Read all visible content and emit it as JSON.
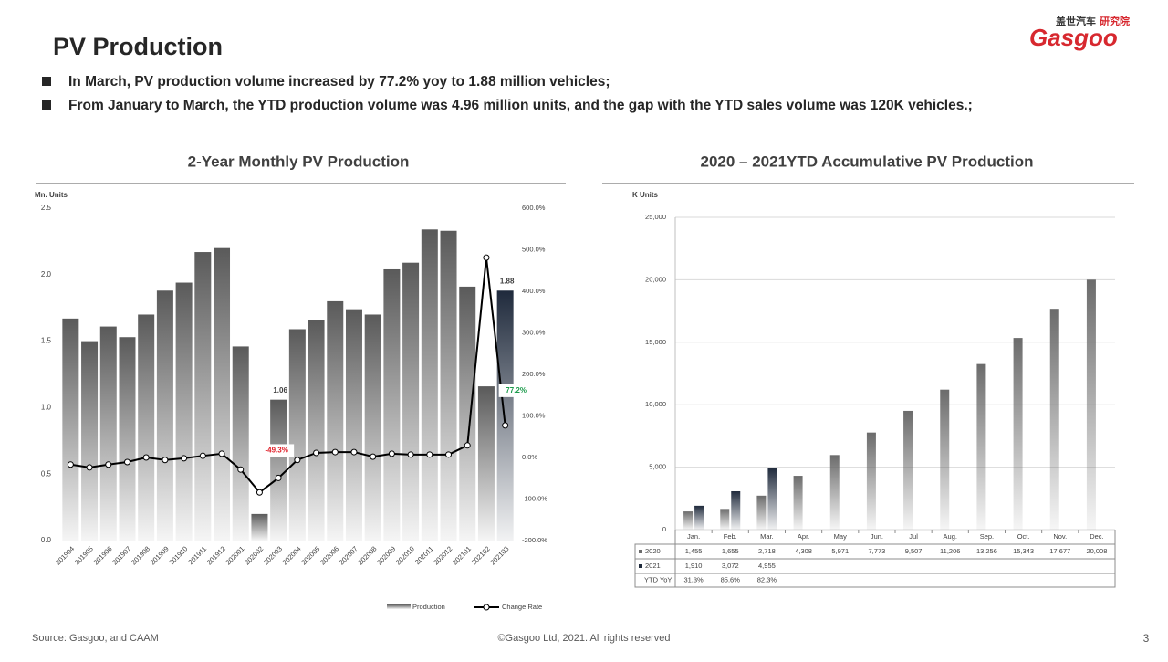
{
  "header": {
    "title": "PV Production",
    "bullets": [
      "In March, PV production volume increased by 77.2% yoy to 1.88 million vehicles;",
      "From January to March, the YTD production volume was 4.96 million units, and the gap with the YTD sales volume was 120K vehicles.;"
    ],
    "logo": {
      "brand_cn": "盖世汽车",
      "unit_cn": "研究院",
      "brand": "Gasgoo"
    }
  },
  "footer": {
    "source": "Source: Gasgoo, and CAAM",
    "copyright": "©Gasgoo Ltd, 2021. All rights reserved",
    "page": "3"
  },
  "chart_data": [
    {
      "type": "bar",
      "title": "2-Year Monthly  PV Production",
      "ylabel": "Mn. Units",
      "grid": false,
      "categories": [
        "201904",
        "201905",
        "201906",
        "201907",
        "201908",
        "201909",
        "201910",
        "201911",
        "201912",
        "202001",
        "202002",
        "202003",
        "202004",
        "202005",
        "202006",
        "202007",
        "202008",
        "202009",
        "202010",
        "202011",
        "202012",
        "202101",
        "202102",
        "202103"
      ],
      "ylim": [
        0,
        2.5
      ],
      "yticks": [
        {
          "value": 0,
          "label": "0.0"
        },
        {
          "value": 0.5,
          "label": "0.5"
        },
        {
          "value": 1,
          "label": "1.0"
        },
        {
          "value": 1.5,
          "label": "1.5"
        },
        {
          "value": 2,
          "label": "2.0"
        },
        {
          "value": 2.5,
          "label": "2.5"
        }
      ],
      "y2lim": [
        -200,
        600
      ],
      "y2ticks": [
        {
          "value": -200,
          "label": "-200.0%"
        },
        {
          "value": -100,
          "label": "-100.0%"
        },
        {
          "value": 0,
          "label": "0.0%"
        },
        {
          "value": 100,
          "label": "100.0%"
        },
        {
          "value": 200,
          "label": "200.0%"
        },
        {
          "value": 300,
          "label": "300.0%"
        },
        {
          "value": 400,
          "label": "400.0%"
        },
        {
          "value": 500,
          "label": "500.0%"
        },
        {
          "value": 600,
          "label": "600.0%"
        }
      ],
      "series": [
        {
          "name": "Production",
          "type": "bar",
          "color": "#5a5a5a",
          "colors": [
            "#5a5a5a",
            "#5a5a5a",
            "#5a5a5a",
            "#5a5a5a",
            "#5a5a5a",
            "#5a5a5a",
            "#5a5a5a",
            "#5a5a5a",
            "#5a5a5a",
            "#5a5a5a",
            "#5a5a5a",
            "#5a5a5a",
            "#5a5a5a",
            "#5a5a5a",
            "#5a5a5a",
            "#5a5a5a",
            "#5a5a5a",
            "#5a5a5a",
            "#5a5a5a",
            "#5a5a5a",
            "#5a5a5a",
            "#5a5a5a",
            "#5a5a5a",
            "#1f2a3c"
          ],
          "values": [
            1.67,
            1.5,
            1.61,
            1.53,
            1.7,
            1.88,
            1.94,
            2.17,
            2.2,
            1.46,
            0.2,
            1.06,
            1.59,
            1.66,
            1.8,
            1.74,
            1.7,
            2.04,
            2.09,
            2.34,
            2.33,
            1.91,
            1.16,
            1.88
          ],
          "value_labels": [
            null,
            null,
            null,
            null,
            null,
            null,
            null,
            null,
            null,
            null,
            null,
            "1.06",
            null,
            null,
            null,
            null,
            null,
            null,
            null,
            null,
            null,
            null,
            null,
            "1.88"
          ]
        },
        {
          "name": "Change Rate",
          "type": "line",
          "axis": "y2",
          "color": "#000000",
          "values": [
            -17,
            -24,
            -17,
            -11,
            0,
            -6,
            -2,
            4,
            9,
            -29,
            -84,
            -49.3,
            -6,
            11,
            13,
            13,
            2,
            9,
            7,
            7,
            7,
            29,
            481,
            77.2
          ],
          "value_labels": [
            null,
            null,
            null,
            null,
            null,
            null,
            null,
            null,
            null,
            null,
            null,
            "-49.3%",
            null,
            null,
            null,
            null,
            null,
            null,
            null,
            null,
            null,
            null,
            null,
            "77.2%"
          ]
        }
      ]
    },
    {
      "type": "bar",
      "title": "2020 – 2021YTD Accumulative  PV Production",
      "ylabel": "K Units",
      "grid": true,
      "categories": [
        "Jan.",
        "Feb.",
        "Mar.",
        "Apr.",
        "May",
        "Jun.",
        "Jul",
        "Aug.",
        "Sep.",
        "Oct.",
        "Nov.",
        "Dec."
      ],
      "ylim": [
        0,
        25000
      ],
      "yticks": [
        0,
        {
          "value": 5000,
          "label": "5,000"
        },
        {
          "value": 10000,
          "label": "10,000"
        },
        {
          "value": 15000,
          "label": "15,000"
        },
        {
          "value": 20000,
          "label": "20,000"
        },
        {
          "value": 25000,
          "label": "25,000"
        }
      ],
      "series": [
        {
          "name": "2020",
          "color": "#6b6b6b",
          "values": [
            1455,
            1655,
            2718,
            4308,
            5971,
            7773,
            9507,
            11206,
            13256,
            15343,
            17677,
            20008
          ],
          "value_labels": [
            "1,455",
            "1,655",
            "2,718",
            "4,308",
            "5,971",
            "7,773",
            "9,507",
            "11,206",
            "13,256",
            "15,343",
            "17,677",
            "20,008"
          ]
        },
        {
          "name": "2021",
          "color": "#1f2a3c",
          "values": [
            1910,
            3072,
            4955,
            null,
            null,
            null,
            null,
            null,
            null,
            null,
            null,
            null
          ],
          "value_labels": [
            "1,910",
            "3,072",
            "4,955",
            null,
            null,
            null,
            null,
            null,
            null,
            null,
            null,
            null
          ]
        }
      ],
      "yoy": {
        "name": "YTD YoY",
        "values": [
          31.3,
          85.6,
          82.3,
          null,
          null,
          null,
          null,
          null,
          null,
          null,
          null,
          null
        ],
        "value_labels": [
          "31.3%",
          "85.6%",
          "82.3%",
          null,
          null,
          null,
          null,
          null,
          null,
          null,
          null,
          null
        ]
      }
    }
  ]
}
